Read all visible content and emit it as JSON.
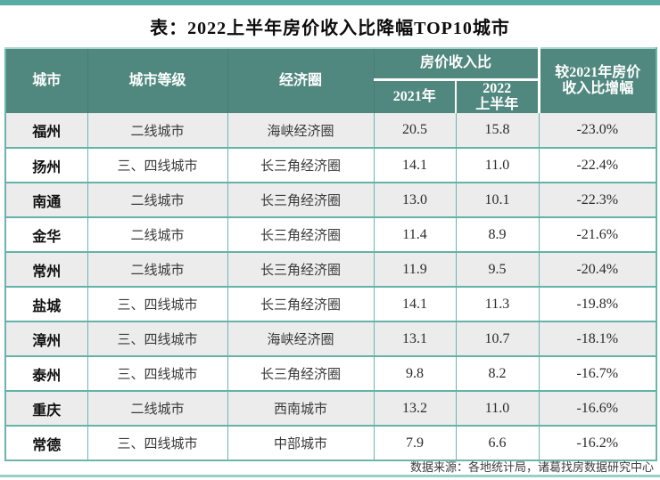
{
  "page": {
    "title": "表：2022上半年房价收入比降幅TOP10城市"
  },
  "table": {
    "header": {
      "city": "城市",
      "tier": "城市等级",
      "circle": "经济圈",
      "ratio_group": "房价收入比",
      "ratio_2021": "2021年",
      "ratio_2022_line1": "2022",
      "ratio_2022_line2": "上半年",
      "change_line1": "较2021年房价",
      "change_line2": "收入比增幅"
    },
    "rows": [
      {
        "city": "福州",
        "tier": "二线城市",
        "circle": "海峡经济圈",
        "y2021": "20.5",
        "y2022": "15.8",
        "change": "-23.0%"
      },
      {
        "city": "扬州",
        "tier": "三、四线城市",
        "circle": "长三角经济圈",
        "y2021": "14.1",
        "y2022": "11.0",
        "change": "-22.4%"
      },
      {
        "city": "南通",
        "tier": "二线城市",
        "circle": "长三角经济圈",
        "y2021": "13.0",
        "y2022": "10.1",
        "change": "-22.3%"
      },
      {
        "city": "金华",
        "tier": "二线城市",
        "circle": "长三角经济圈",
        "y2021": "11.4",
        "y2022": "8.9",
        "change": "-21.6%"
      },
      {
        "city": "常州",
        "tier": "二线城市",
        "circle": "长三角经济圈",
        "y2021": "11.9",
        "y2022": "9.5",
        "change": "-20.4%"
      },
      {
        "city": "盐城",
        "tier": "三、四线城市",
        "circle": "长三角经济圈",
        "y2021": "14.1",
        "y2022": "11.3",
        "change": "-19.8%"
      },
      {
        "city": "漳州",
        "tier": "三、四线城市",
        "circle": "海峡经济圈",
        "y2021": "13.1",
        "y2022": "10.7",
        "change": "-18.1%"
      },
      {
        "city": "泰州",
        "tier": "三、四线城市",
        "circle": "长三角经济圈",
        "y2021": "9.8",
        "y2022": "8.2",
        "change": "-16.7%"
      },
      {
        "city": "重庆",
        "tier": "二线城市",
        "circle": "西南城市",
        "y2021": "13.2",
        "y2022": "11.0",
        "change": "-16.6%"
      },
      {
        "city": "常德",
        "tier": "三、四线城市",
        "circle": "中部城市",
        "y2021": "7.9",
        "y2022": "6.6",
        "change": "-16.2%"
      }
    ]
  },
  "footer": {
    "source": "数据来源：各地统计局，诸葛找房数据研究中心"
  },
  "colors": {
    "accent_teal_bar": "#5aaba2",
    "header_bg": "#50887f",
    "border_teal": "#64b3a9",
    "row_alt_bg": "#ececec",
    "bottom_bar": "#9bcfc9"
  },
  "chart_data": {
    "type": "table",
    "title": "表：2022上半年房价收入比降幅TOP10城市",
    "columns": [
      "城市",
      "城市等级",
      "经济圈",
      "房价收入比 2021年",
      "房价收入比 2022上半年",
      "较2021年房价收入比增幅"
    ],
    "rows": [
      [
        "福州",
        "二线城市",
        "海峡经济圈",
        20.5,
        15.8,
        "-23.0%"
      ],
      [
        "扬州",
        "三、四线城市",
        "长三角经济圈",
        14.1,
        11.0,
        "-22.4%"
      ],
      [
        "南通",
        "二线城市",
        "长三角经济圈",
        13.0,
        10.1,
        "-22.3%"
      ],
      [
        "金华",
        "二线城市",
        "长三角经济圈",
        11.4,
        8.9,
        "-21.6%"
      ],
      [
        "常州",
        "二线城市",
        "长三角经济圈",
        11.9,
        9.5,
        "-20.4%"
      ],
      [
        "盐城",
        "三、四线城市",
        "长三角经济圈",
        14.1,
        11.3,
        "-19.8%"
      ],
      [
        "漳州",
        "三、四线城市",
        "海峡经济圈",
        13.1,
        10.7,
        "-18.1%"
      ],
      [
        "泰州",
        "三、四线城市",
        "长三角经济圈",
        9.8,
        8.2,
        "-16.7%"
      ],
      [
        "重庆",
        "二线城市",
        "西南城市",
        13.2,
        11.0,
        "-16.6%"
      ],
      [
        "常德",
        "三、四线城市",
        "中部城市",
        7.9,
        6.6,
        "-16.2%"
      ]
    ],
    "source_note": "数据来源：各地统计局，诸葛找房数据研究中心"
  }
}
